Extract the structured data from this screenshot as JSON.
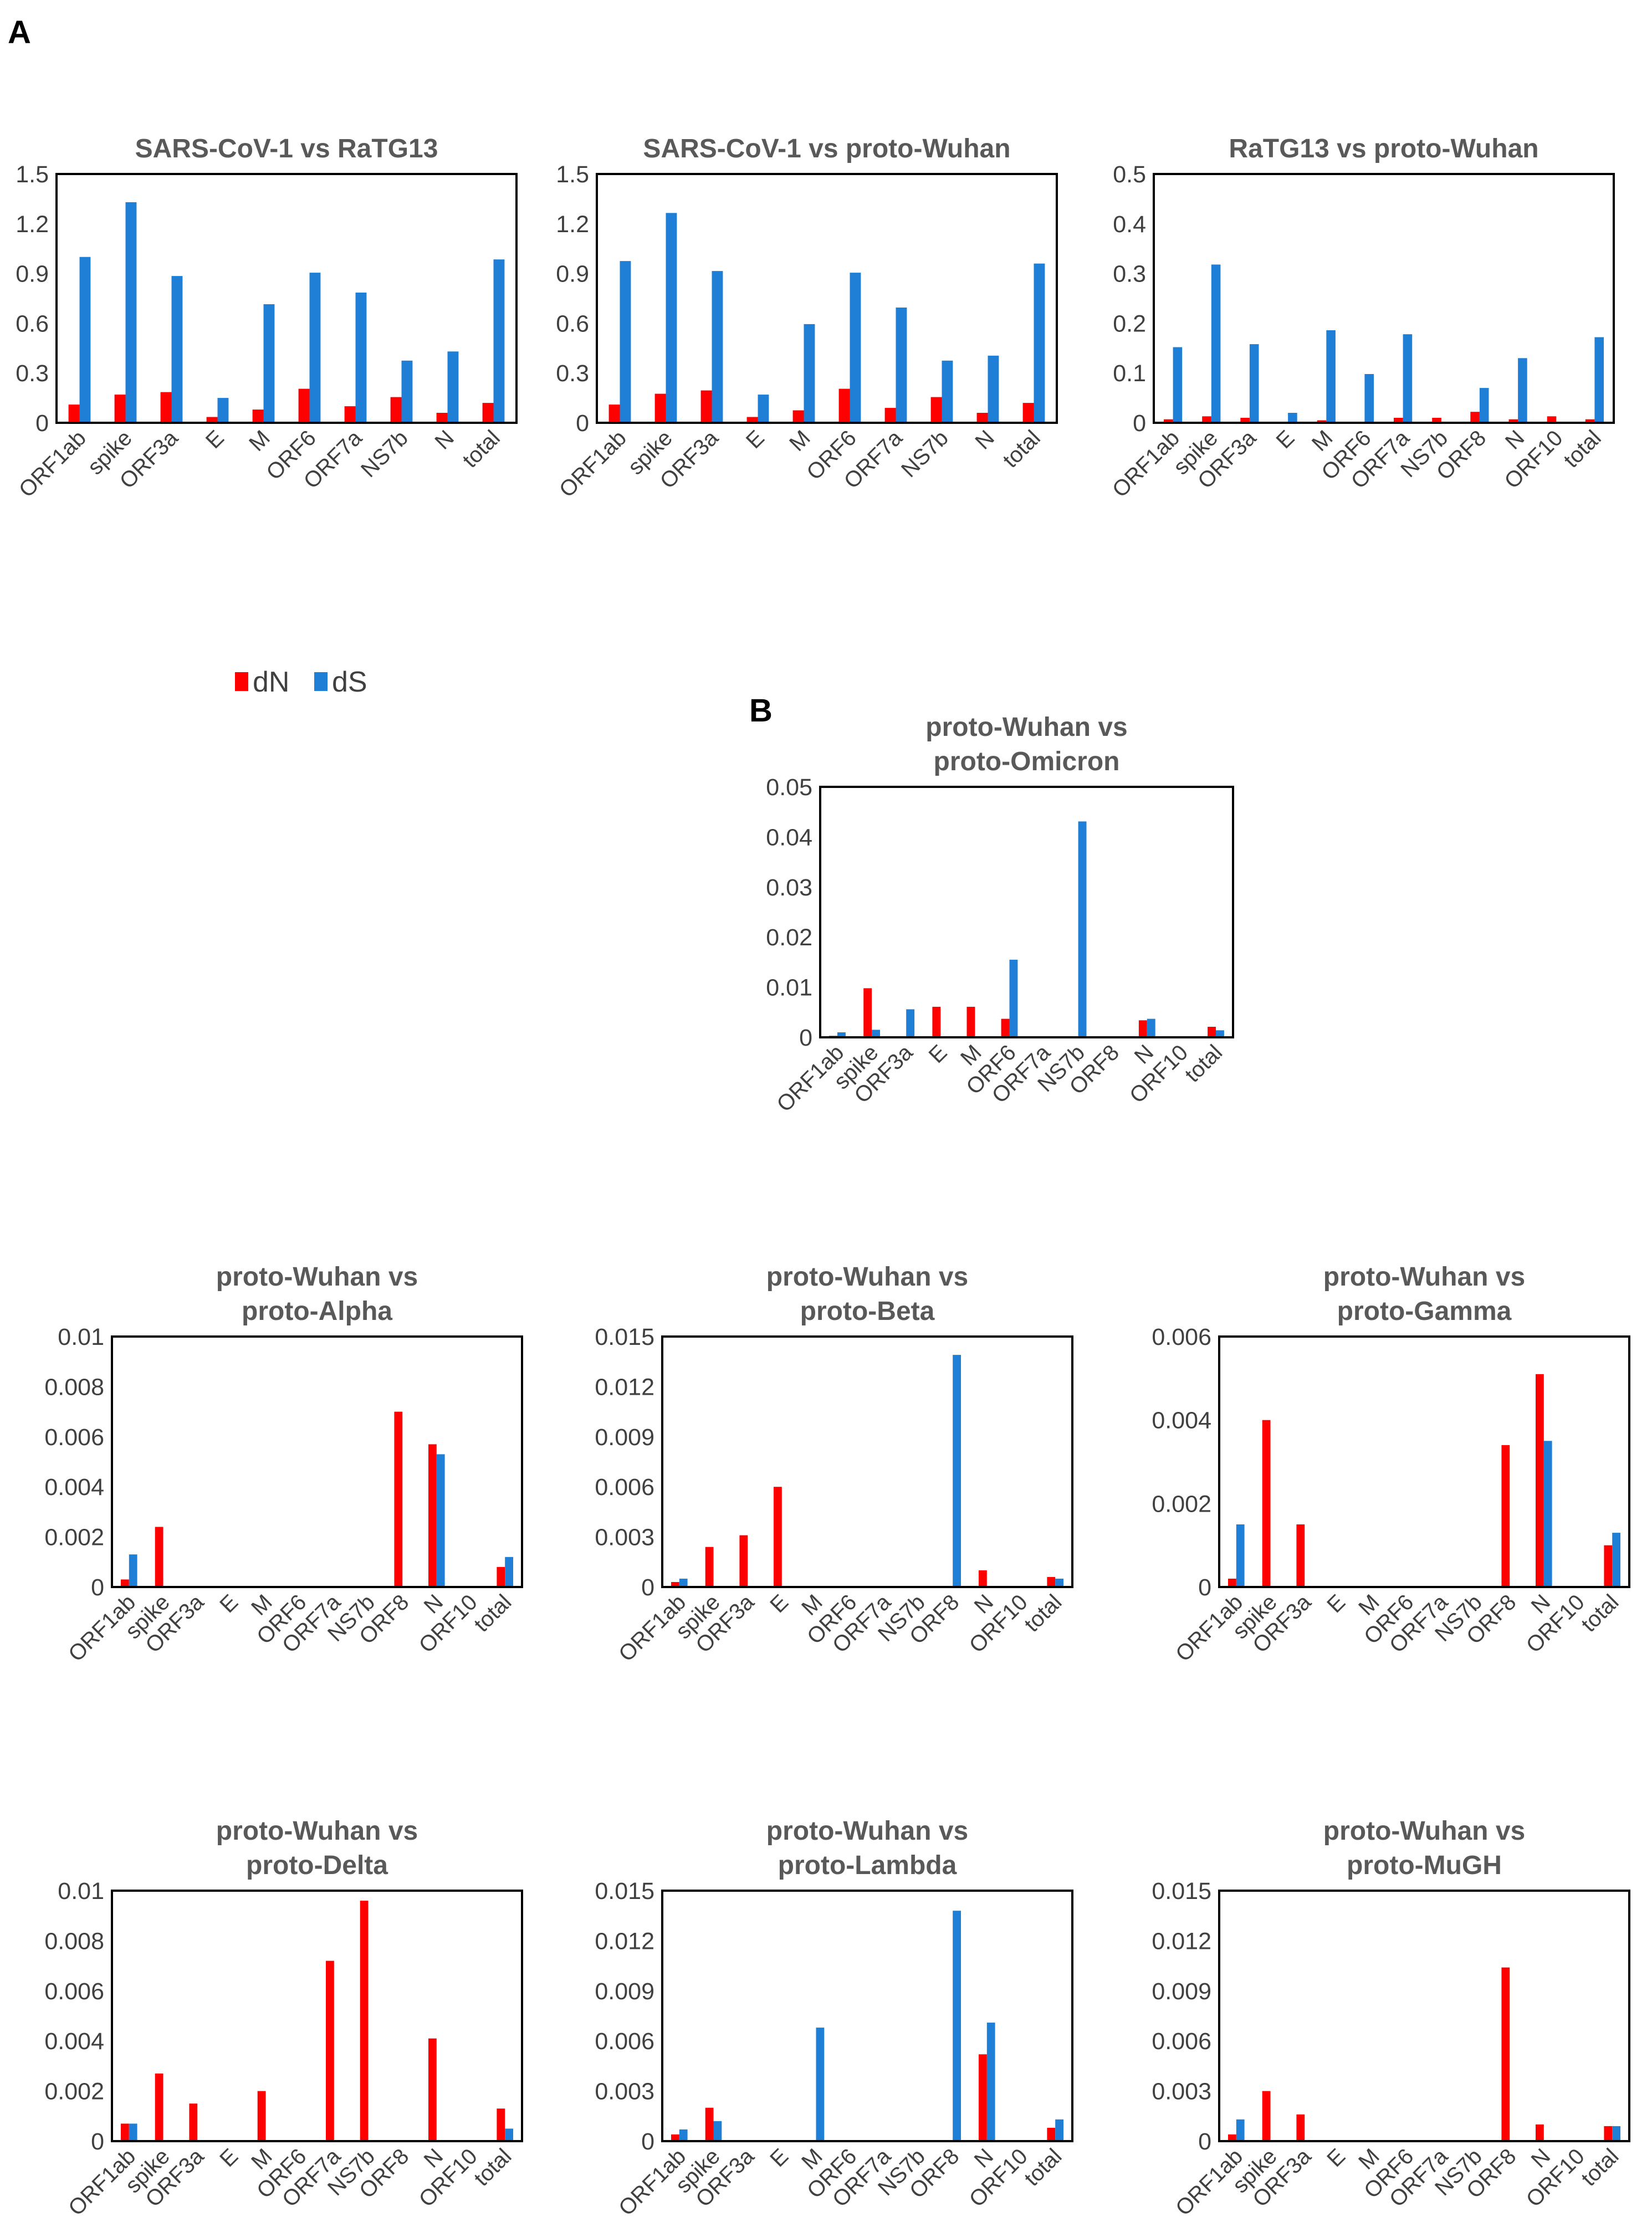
{
  "panel_labels": {
    "a": "A",
    "b": "B"
  },
  "legend": {
    "dn": "dN",
    "ds": "dS"
  },
  "colors": {
    "dN": "#ff0000",
    "dS": "#1f7fd6",
    "axis": "#000000",
    "text": "#404040",
    "title": "#595959"
  },
  "chart_data": [
    {
      "id": "c1",
      "type": "bar",
      "title": [
        "SARS-CoV-1 vs RaTG13"
      ],
      "ylim": [
        0,
        1.5
      ],
      "yticks": [
        "0",
        "0.3",
        "0.6",
        "0.9",
        "1.2",
        "1.5"
      ],
      "categories": [
        "ORF1ab",
        "spike",
        "ORF3a",
        "E",
        "M",
        "ORF6",
        "ORF7a",
        "NS7b",
        "N",
        "total"
      ],
      "series": [
        {
          "name": "dN",
          "values": [
            0.11,
            0.17,
            0.185,
            0.035,
            0.08,
            0.205,
            0.1,
            0.155,
            0.06,
            0.12
          ]
        },
        {
          "name": "dS",
          "values": [
            1.0,
            1.33,
            0.885,
            0.15,
            0.715,
            0.905,
            0.785,
            0.375,
            0.43,
            0.985
          ]
        }
      ]
    },
    {
      "id": "c2",
      "type": "bar",
      "title": [
        "SARS-CoV-1 vs proto-Wuhan"
      ],
      "ylim": [
        0,
        1.5
      ],
      "yticks": [
        "0",
        "0.3",
        "0.6",
        "0.9",
        "1.2",
        "1.5"
      ],
      "categories": [
        "ORF1ab",
        "spike",
        "ORF3a",
        "E",
        "M",
        "ORF6",
        "ORF7a",
        "NS7b",
        "N",
        "total"
      ],
      "series": [
        {
          "name": "dN",
          "values": [
            0.11,
            0.175,
            0.195,
            0.035,
            0.075,
            0.205,
            0.09,
            0.155,
            0.06,
            0.12
          ]
        },
        {
          "name": "dS",
          "values": [
            0.975,
            1.265,
            0.915,
            0.17,
            0.595,
            0.905,
            0.695,
            0.375,
            0.405,
            0.96
          ]
        }
      ]
    },
    {
      "id": "c3",
      "type": "bar",
      "title": [
        "RaTG13 vs proto-Wuhan"
      ],
      "ylim": [
        0,
        0.5
      ],
      "yticks": [
        "0",
        "0.1",
        "0.2",
        "0.3",
        "0.4",
        "0.5"
      ],
      "categories": [
        "ORF1ab",
        "spike",
        "ORF3a",
        "E",
        "M",
        "ORF6",
        "ORF7a",
        "NS7b",
        "ORF8",
        "N",
        "ORF10",
        "total"
      ],
      "series": [
        {
          "name": "dN",
          "values": [
            0.007,
            0.013,
            0.01,
            0,
            0.005,
            0,
            0.01,
            0.01,
            0.022,
            0.007,
            0.013,
            0.007
          ]
        },
        {
          "name": "dS",
          "values": [
            0.152,
            0.318,
            0.158,
            0.02,
            0.186,
            0.098,
            0.178,
            0,
            0.07,
            0.13,
            0,
            0.172
          ]
        }
      ]
    },
    {
      "id": "c4",
      "type": "bar",
      "title": [
        "proto-Wuhan vs",
        "proto-Omicron"
      ],
      "ylim": [
        0,
        0.05
      ],
      "yticks": [
        "0",
        "0.01",
        "0.02",
        "0.03",
        "0.04",
        "0.05"
      ],
      "categories": [
        "ORF1ab",
        "spike",
        "ORF3a",
        "E",
        "M",
        "ORF6",
        "ORF7a",
        "NS7b",
        "ORF8",
        "N",
        "ORF10",
        "total"
      ],
      "series": [
        {
          "name": "dN",
          "values": [
            0.0003,
            0.0098,
            0,
            0.0061,
            0.0061,
            0.0037,
            0,
            0,
            0,
            0.0034,
            0,
            0.0021
          ]
        },
        {
          "name": "dS",
          "values": [
            0.001,
            0.0015,
            0.0056,
            0,
            0,
            0.0155,
            0,
            0.0431,
            0,
            0.0037,
            0,
            0.0014
          ]
        }
      ]
    },
    {
      "id": "c5",
      "type": "bar",
      "title": [
        "proto-Wuhan vs",
        "proto-Alpha"
      ],
      "ylim": [
        0,
        0.01
      ],
      "yticks": [
        "0",
        "0.002",
        "0.004",
        "0.006",
        "0.008",
        "0.01"
      ],
      "categories": [
        "ORF1ab",
        "spike",
        "ORF3a",
        "E",
        "M",
        "ORF6",
        "ORF7a",
        "NS7b",
        "ORF8",
        "N",
        "ORF10",
        "total"
      ],
      "series": [
        {
          "name": "dN",
          "values": [
            0.0003,
            0.0024,
            0,
            0,
            0,
            0,
            0,
            0,
            0.007,
            0.0057,
            0,
            0.0008
          ]
        },
        {
          "name": "dS",
          "values": [
            0.0013,
            0,
            0,
            0,
            0,
            0,
            0,
            0,
            0,
            0.0053,
            0,
            0.0012
          ]
        }
      ]
    },
    {
      "id": "c6",
      "type": "bar",
      "title": [
        "proto-Wuhan vs",
        "proto-Beta"
      ],
      "ylim": [
        0,
        0.015
      ],
      "yticks": [
        "0",
        "0.003",
        "0.006",
        "0.009",
        "0.012",
        "0.015"
      ],
      "categories": [
        "ORF1ab",
        "spike",
        "ORF3a",
        "E",
        "M",
        "ORF6",
        "ORF7a",
        "NS7b",
        "ORF8",
        "N",
        "ORF10",
        "total"
      ],
      "series": [
        {
          "name": "dN",
          "values": [
            0.0003,
            0.0024,
            0.0031,
            0.006,
            0,
            0,
            0,
            0,
            0,
            0.001,
            0,
            0.0006
          ]
        },
        {
          "name": "dS",
          "values": [
            0.0005,
            0,
            0,
            0,
            0,
            0,
            0,
            0,
            0.0139,
            0,
            0,
            0.0005
          ]
        }
      ]
    },
    {
      "id": "c7",
      "type": "bar",
      "title": [
        "proto-Wuhan vs",
        "proto-Gamma"
      ],
      "ylim": [
        0,
        0.006
      ],
      "yticks": [
        "0",
        "0.002",
        "0.004",
        "0.006"
      ],
      "categories": [
        "ORF1ab",
        "spike",
        "ORF3a",
        "E",
        "M",
        "ORF6",
        "ORF7a",
        "NS7b",
        "ORF8",
        "N",
        "ORF10",
        "total"
      ],
      "series": [
        {
          "name": "dN",
          "values": [
            0.0002,
            0.004,
            0.0015,
            0,
            0,
            0,
            0,
            0,
            0.0034,
            0.0051,
            0,
            0.001
          ]
        },
        {
          "name": "dS",
          "values": [
            0.0015,
            0,
            0,
            0,
            0,
            0,
            0,
            0,
            0,
            0.0035,
            0,
            0.0013
          ]
        }
      ]
    },
    {
      "id": "c8",
      "type": "bar",
      "title": [
        "proto-Wuhan vs",
        "proto-Delta"
      ],
      "ylim": [
        0,
        0.01
      ],
      "yticks": [
        "0",
        "0.002",
        "0.004",
        "0.006",
        "0.008",
        "0.01"
      ],
      "categories": [
        "ORF1ab",
        "spike",
        "ORF3a",
        "E",
        "M",
        "ORF6",
        "ORF7a",
        "NS7b",
        "ORF8",
        "N",
        "ORF10",
        "total"
      ],
      "series": [
        {
          "name": "dN",
          "values": [
            0.0007,
            0.0027,
            0.0015,
            0,
            0.002,
            0,
            0.0072,
            0.0096,
            0,
            0.0041,
            0,
            0.0013
          ]
        },
        {
          "name": "dS",
          "values": [
            0.0007,
            0,
            0,
            0,
            0,
            0,
            0,
            0,
            0,
            0,
            0,
            0.0005
          ]
        }
      ]
    },
    {
      "id": "c9",
      "type": "bar",
      "title": [
        "proto-Wuhan vs",
        "proto-Lambda"
      ],
      "ylim": [
        0,
        0.015
      ],
      "yticks": [
        "0",
        "0.003",
        "0.006",
        "0.009",
        "0.012",
        "0.015"
      ],
      "categories": [
        "ORF1ab",
        "spike",
        "ORF3a",
        "E",
        "M",
        "ORF6",
        "ORF7a",
        "NS7b",
        "ORF8",
        "N",
        "ORF10",
        "total"
      ],
      "series": [
        {
          "name": "dN",
          "values": [
            0.0004,
            0.002,
            0,
            0,
            0,
            0,
            0,
            0,
            0,
            0.0052,
            0,
            0.0008
          ]
        },
        {
          "name": "dS",
          "values": [
            0.0007,
            0.0012,
            0,
            0,
            0.0068,
            0,
            0,
            0,
            0.0138,
            0.0071,
            0,
            0.0013
          ]
        }
      ]
    },
    {
      "id": "c10",
      "type": "bar",
      "title": [
        "proto-Wuhan vs",
        "proto-MuGH"
      ],
      "ylim": [
        0,
        0.015
      ],
      "yticks": [
        "0",
        "0.003",
        "0.006",
        "0.009",
        "0.012",
        "0.015"
      ],
      "categories": [
        "ORF1ab",
        "spike",
        "ORF3a",
        "E",
        "M",
        "ORF6",
        "ORF7a",
        "NS7b",
        "ORF8",
        "N",
        "ORF10",
        "total"
      ],
      "series": [
        {
          "name": "dN",
          "values": [
            0.0004,
            0.003,
            0.0016,
            0,
            0,
            0,
            0,
            0,
            0.0104,
            0.001,
            0,
            0.0009
          ]
        },
        {
          "name": "dS",
          "values": [
            0.0013,
            0,
            0,
            0,
            0,
            0,
            0,
            0,
            0,
            0,
            0,
            0.0009
          ]
        }
      ]
    }
  ]
}
